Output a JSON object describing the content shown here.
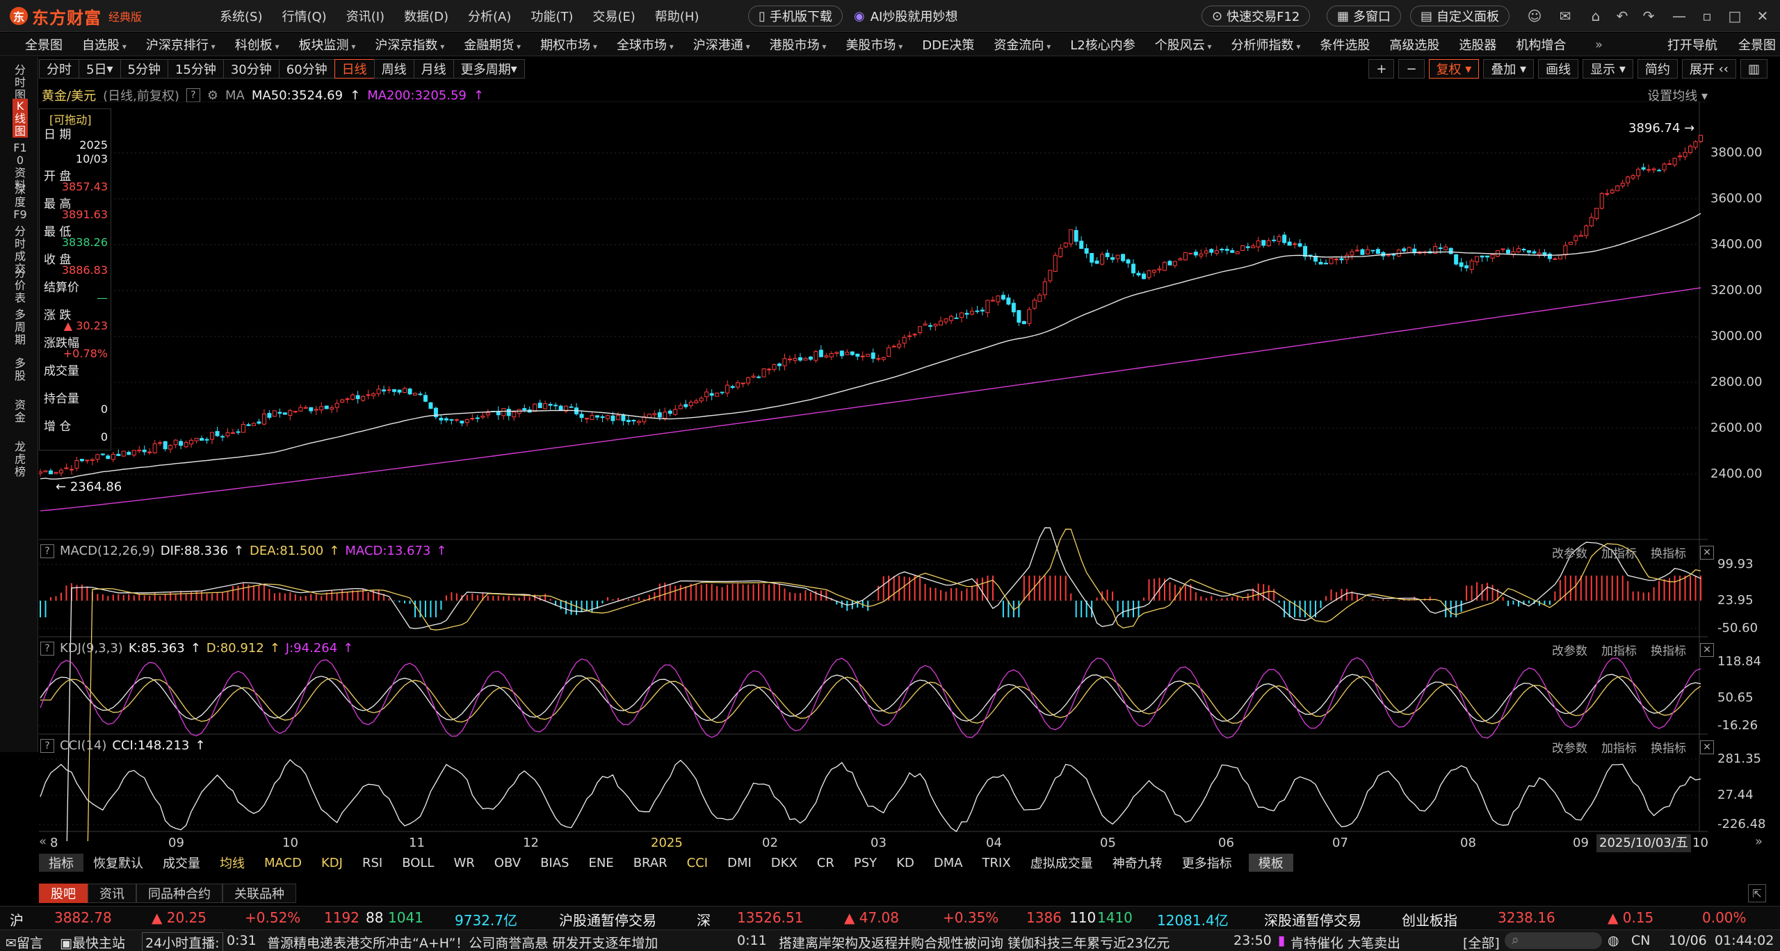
{
  "app": {
    "logo_text": "东方财富",
    "edition": "经典版",
    "menu": [
      "系统(S)",
      "行情(Q)",
      "资讯(I)",
      "数据(D)",
      "分析(A)",
      "功能(T)",
      "交易(E)",
      "帮助(H)"
    ],
    "mobile_download": "手机版下载",
    "ai_promo": "AI炒股就用妙想",
    "quick_trade": "快速交易F12",
    "multi_window": "多窗口",
    "custom_panel": "自定义面板"
  },
  "nav": [
    "全景图",
    "自选股",
    "沪深京排行",
    "科创板",
    "板块监测",
    "沪深京指数",
    "金融期货",
    "期权市场",
    "全球市场",
    "沪深港通",
    "港股市场",
    "美股市场",
    "DDE决策",
    "资金流向",
    "L2核心内参",
    "个股风云",
    "分析师指数",
    "条件选股",
    "高级选股",
    "选股器",
    "机构增合"
  ],
  "nav_right": [
    "打开导航",
    "全景图"
  ],
  "sidebar": [
    "分时图",
    "K线图",
    "F10资料",
    "深度F9",
    "分时成交",
    "分价表",
    "多周期",
    "多股",
    "资金",
    "龙虎榜"
  ],
  "periods": [
    "分时",
    "5日",
    "5分钟",
    "15分钟",
    "30分钟",
    "60分钟",
    "日线",
    "周线",
    "月线",
    "更多周期"
  ],
  "right_tools": [
    "复权",
    "叠加",
    "画线",
    "显示",
    "简约",
    "展开"
  ],
  "main_legend": {
    "symbol": "黄金/美元",
    "mode": "(日线,前复权)",
    "ma_label": "MA",
    "ma50": "MA50:3524.69",
    "ma200": "MA200:3205.59",
    "settings": "设置均线"
  },
  "info": {
    "drag": "[可拖动]",
    "labels": [
      "日 期",
      "开 盘",
      "最 高",
      "最 低",
      "收 盘",
      "结算价",
      "涨 跌",
      "涨跌幅",
      "成交量",
      "持合量",
      "增 仓"
    ],
    "date_year": "2025",
    "date_md": "10/03",
    "open": "3857.43",
    "high": "3891.63",
    "low": "3838.26",
    "close": "3886.83",
    "settle": "—",
    "change": "▲ 30.23",
    "pct": "+0.78%",
    "volume": "",
    "oi": "0",
    "inc": "0"
  },
  "price_axis": [
    "3800.00",
    "3600.00",
    "3400.00",
    "3200.00",
    "3000.00",
    "2800.00",
    "2600.00",
    "2400.00"
  ],
  "high_mark": "3896.74",
  "low_mark": "2364.86",
  "macd": {
    "name": "MACD(12,26,9)",
    "dif": "DIF:88.336",
    "dea": "DEA:81.500",
    "macd": "MACD:13.673",
    "axis": [
      "99.93",
      "23.95",
      "-50.60"
    ]
  },
  "kdj": {
    "name": "KDJ(9,3,3)",
    "k": "K:85.363",
    "d": "D:80.912",
    "j": "J:94.264",
    "axis": [
      "118.84",
      "50.65",
      "-16.26"
    ]
  },
  "cci": {
    "name": "CCI(14)",
    "cci": "CCI:148.213",
    "axis": [
      "281.35",
      "27.44",
      "-226.48"
    ]
  },
  "panel_buttons": [
    "改参数",
    "加指标",
    "换指标"
  ],
  "time_axis": [
    "8",
    "09",
    "10",
    "11",
    "12",
    "2025",
    "02",
    "03",
    "04",
    "05",
    "06",
    "07",
    "08",
    "09",
    "10"
  ],
  "cursor_date": "2025/10/03/五",
  "indicators": [
    "指标",
    "恢复默认",
    "成交量",
    "均线",
    "MACD",
    "KDJ",
    "RSI",
    "BOLL",
    "WR",
    "OBV",
    "BIAS",
    "ENE",
    "BRAR",
    "CCI",
    "DMI",
    "DKX",
    "CR",
    "PSY",
    "KD",
    "DMA",
    "TRIX",
    "虚拟成交量",
    "神奇九转",
    "更多指标",
    "模板"
  ],
  "tabs": [
    "股吧",
    "资讯",
    "同品种合约",
    "关联品种"
  ],
  "status1": {
    "sh": "沪",
    "sh_price": "3882.78",
    "sh_chg": "▲ 20.25",
    "sh_pct": "+0.52%",
    "sh_up": "1192",
    "sh_flat": "88",
    "sh_dn": "1041",
    "sh_amt": "9732.7亿",
    "sh_hk": "沪股通暂停交易",
    "sz": "深",
    "sz_price": "13526.51",
    "sz_chg": "▲ 47.08",
    "sz_pct": "+0.35%",
    "sz_up": "1386",
    "sz_flat": "110",
    "sz_dn": "1410",
    "sz_amt": "12081.4亿",
    "sz_hk": "深股通暂停交易",
    "cyb": "创业板指",
    "cyb_price": "3238.16",
    "cyb_chg": "▲ 0.15",
    "cyb_pct": "0.00%"
  },
  "status2": {
    "msg": "留言",
    "host": "最快主站",
    "live": "24小时直播:",
    "t1": "0:31",
    "n1": "普源精电递表港交所冲击“A+H”！公司商誉高悬 研发开支逐年增加",
    "t2": "0:11",
    "n2": "搭建离岸架构及返程并购合规性被问询 镁伽科技三年累亏近23亿元",
    "t3": "23:50",
    "n3": "肯特催化 大笔卖出",
    "all": "[全部]",
    "lang": "CN",
    "date": "10/06",
    "time": "01:44:02"
  }
}
